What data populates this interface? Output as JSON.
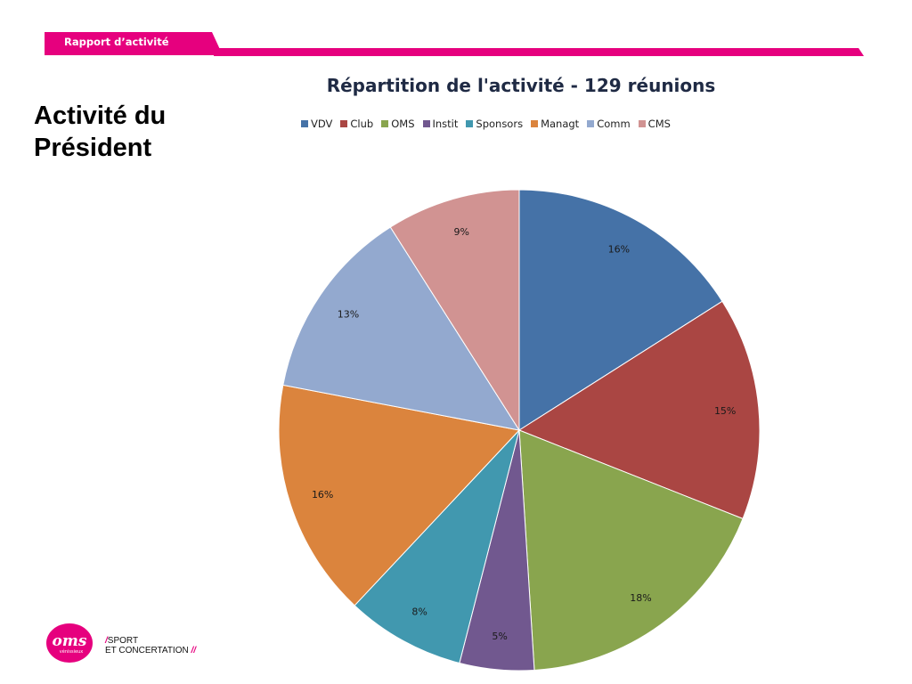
{
  "header": {
    "tab_label": "Rapport d’activité"
  },
  "page": {
    "title_line1": "Activité du",
    "title_line2": "Président"
  },
  "chart_data": {
    "type": "pie",
    "title": "Répartition de l'activité - 129 réunions",
    "legend_position": "top",
    "categories": [
      "VDV",
      "Club",
      "OMS",
      "Instit",
      "Sponsors",
      "Managt",
      "Comm",
      "CMS"
    ],
    "values": [
      16,
      15,
      18,
      5,
      8,
      16,
      13,
      9
    ],
    "labels": [
      "16%",
      "15%",
      "18%",
      "5%",
      "8%",
      "16%",
      "13%",
      "9%"
    ],
    "colors": [
      "#4572a7",
      "#aa4643",
      "#89a54e",
      "#71588f",
      "#4198af",
      "#db843d",
      "#93a9cf",
      "#d19392"
    ]
  },
  "logo": {
    "text": "oms",
    "sub": "vénissieux",
    "tagline_line1": "SPORT",
    "tagline_line2": "ET CONCERTATION"
  }
}
